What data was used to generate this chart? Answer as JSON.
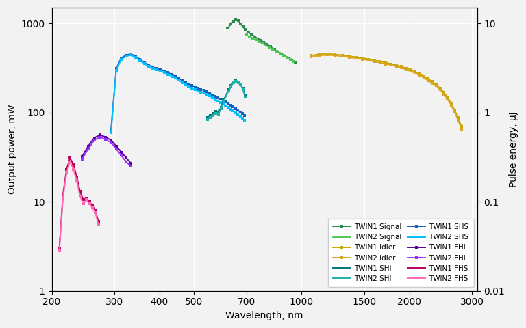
{
  "xlabel": "Wavelength, nm",
  "ylabel_left": "Output power, mW",
  "ylabel_right": "Pulse energy, μJ",
  "background_color": "#f2f2f2",
  "series": {
    "twin1_signal": {
      "color": "#2e8b50",
      "label": "TWIN1 Signal",
      "x": [
        620,
        635,
        645,
        655,
        665,
        675,
        685,
        695,
        710,
        725,
        740,
        755,
        770,
        785,
        800,
        820,
        840,
        860,
        880,
        900,
        920,
        940,
        960
      ],
      "y": [
        880,
        980,
        1060,
        1100,
        1080,
        980,
        920,
        850,
        790,
        750,
        710,
        670,
        640,
        610,
        580,
        545,
        510,
        480,
        455,
        430,
        408,
        388,
        368
      ]
    },
    "twin2_signal": {
      "color": "#50c858",
      "label": "TWIN2 Signal",
      "x": [
        700,
        715,
        730,
        745,
        760,
        775,
        790,
        810,
        830,
        850,
        870,
        890,
        910,
        930,
        950
      ],
      "y": [
        740,
        710,
        680,
        655,
        625,
        598,
        572,
        540,
        510,
        483,
        458,
        435,
        413,
        393,
        375
      ]
    },
    "twin1_idler": {
      "color": "#c8a800",
      "label": "TWIN1 Idler",
      "x": [
        1060,
        1120,
        1180,
        1240,
        1300,
        1360,
        1420,
        1480,
        1540,
        1600,
        1660,
        1720,
        1780,
        1840,
        1900,
        1960,
        2020,
        2080,
        2140,
        2200,
        2260,
        2320,
        2380,
        2440,
        2500,
        2560,
        2620,
        2680,
        2740,
        2800
      ],
      "y": [
        435,
        450,
        455,
        448,
        438,
        428,
        418,
        408,
        396,
        384,
        374,
        362,
        350,
        340,
        328,
        314,
        300,
        286,
        270,
        254,
        238,
        222,
        205,
        188,
        168,
        148,
        127,
        106,
        87,
        70
      ]
    },
    "twin2_idler": {
      "color": "#daa520",
      "label": "TWIN2 Idler",
      "x": [
        1060,
        1120,
        1180,
        1240,
        1300,
        1360,
        1420,
        1480,
        1540,
        1600,
        1660,
        1720,
        1780,
        1840,
        1900,
        1960,
        2020,
        2080,
        2140,
        2200,
        2260,
        2320,
        2380,
        2440,
        2500,
        2560,
        2620,
        2680,
        2740,
        2800
      ],
      "y": [
        420,
        435,
        442,
        436,
        426,
        416,
        406,
        396,
        384,
        372,
        362,
        350,
        340,
        330,
        317,
        303,
        290,
        276,
        260,
        244,
        228,
        212,
        196,
        180,
        161,
        141,
        121,
        101,
        82,
        65
      ]
    },
    "twin1_shi": {
      "color": "#007878",
      "label": "TWIN1 SHI",
      "x": [
        545,
        555,
        565,
        575,
        585,
        595,
        605,
        615,
        625,
        635,
        645,
        655,
        665,
        675,
        685,
        695
      ],
      "y": [
        88,
        92,
        97,
        102,
        100,
        115,
        138,
        158,
        180,
        200,
        220,
        230,
        220,
        210,
        185,
        155
      ]
    },
    "twin2_shi": {
      "color": "#20b2aa",
      "label": "TWIN2 SHI",
      "x": [
        545,
        555,
        565,
        575,
        585,
        595,
        605,
        615,
        625,
        635,
        645,
        655,
        665,
        675,
        685,
        695
      ],
      "y": [
        83,
        88,
        93,
        97,
        95,
        110,
        133,
        153,
        175,
        195,
        215,
        225,
        215,
        205,
        180,
        150
      ]
    },
    "twin1_shs": {
      "color": "#1560bd",
      "label": "TWIN1 SHS",
      "x": [
        293,
        303,
        313,
        323,
        333,
        343,
        353,
        363,
        373,
        383,
        393,
        403,
        413,
        423,
        433,
        443,
        453,
        463,
        473,
        483,
        493,
        503,
        513,
        523,
        533,
        543,
        553,
        563,
        573,
        583,
        593,
        603,
        613,
        623,
        633,
        643,
        653,
        663,
        673,
        683,
        693
      ],
      "y": [
        65,
        310,
        410,
        440,
        455,
        425,
        395,
        365,
        343,
        323,
        312,
        302,
        292,
        280,
        267,
        255,
        242,
        229,
        217,
        207,
        200,
        192,
        187,
        182,
        177,
        172,
        165,
        158,
        152,
        147,
        141,
        136,
        131,
        126,
        121,
        116,
        111,
        106,
        101,
        97,
        93
      ]
    },
    "twin2_shs": {
      "color": "#00bfff",
      "label": "TWIN2 SHS",
      "x": [
        293,
        303,
        313,
        323,
        333,
        343,
        353,
        363,
        373,
        383,
        393,
        403,
        413,
        423,
        433,
        443,
        453,
        463,
        473,
        483,
        493,
        503,
        513,
        523,
        533,
        543,
        553,
        563,
        573,
        583,
        593,
        603,
        613,
        623,
        633,
        643,
        653,
        663,
        673,
        683,
        693
      ],
      "y": [
        60,
        296,
        396,
        426,
        441,
        412,
        382,
        352,
        330,
        311,
        300,
        290,
        280,
        268,
        255,
        243,
        230,
        217,
        205,
        195,
        188,
        180,
        175,
        170,
        165,
        160,
        153,
        146,
        140,
        135,
        129,
        124,
        119,
        114,
        109,
        104,
        99,
        94,
        90,
        86,
        82
      ]
    },
    "twin1_fhi": {
      "color": "#5c0099",
      "label": "TWIN1 FHI",
      "x": [
        243,
        253,
        263,
        273,
        283,
        293,
        303,
        313,
        323,
        333
      ],
      "y": [
        32,
        42,
        52,
        56,
        53,
        49,
        42,
        36,
        31,
        27
      ]
    },
    "twin2_fhi": {
      "color": "#9b30ff",
      "label": "TWIN2 FHI",
      "x": [
        243,
        253,
        263,
        273,
        283,
        293,
        303,
        313,
        323,
        333
      ],
      "y": [
        30,
        39,
        49,
        53,
        50,
        46,
        39,
        33,
        28,
        25
      ]
    },
    "twin1_fhs": {
      "color": "#b8005a",
      "label": "TWIN1 FHS",
      "x": [
        210,
        215,
        220,
        225,
        230,
        235,
        240,
        245,
        250,
        255,
        260,
        265,
        270
      ],
      "y": [
        3.0,
        12,
        23,
        31,
        26,
        19,
        13,
        10.5,
        11,
        10,
        9,
        8,
        6
      ]
    },
    "twin2_fhs": {
      "color": "#ff69b4",
      "label": "TWIN2 FHS",
      "x": [
        210,
        215,
        220,
        225,
        230,
        235,
        240,
        245,
        250,
        255,
        260,
        265,
        270
      ],
      "y": [
        2.8,
        11,
        21,
        28,
        23,
        17,
        11.5,
        9.5,
        10.5,
        9.5,
        8.5,
        7.5,
        5.5
      ]
    }
  },
  "xticks": [
    200,
    300,
    400,
    500,
    700,
    1000,
    1500,
    2000,
    3000
  ],
  "xtick_labels": [
    "200",
    "300",
    "400",
    "500",
    "700",
    "1000",
    "1500",
    "2000",
    "3000"
  ],
  "yticks_left": [
    1,
    10,
    100,
    1000
  ],
  "ytick_labels_left": [
    "1",
    "10",
    "100",
    "1000"
  ],
  "yticks_right": [
    0.01,
    0.1,
    1,
    10
  ],
  "ytick_labels_right": [
    "0.01",
    "0.1",
    "1",
    "10"
  ],
  "ylim_left": [
    1,
    1500
  ],
  "conversion_factor": 100
}
